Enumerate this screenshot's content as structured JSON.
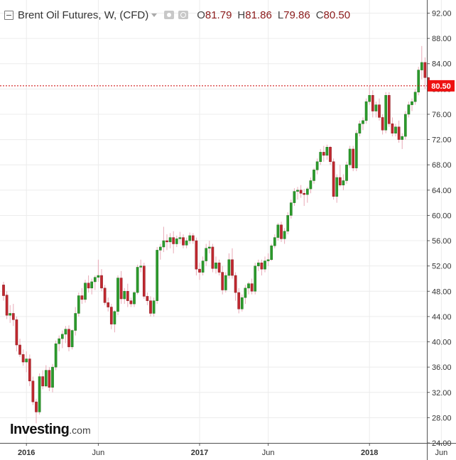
{
  "header": {
    "title": "Brent Oil Futures, W, (CFD)",
    "open_label": "O",
    "open": "81.79",
    "high_label": "H",
    "high": "81.86",
    "low_label": "L",
    "low": "79.86",
    "close_label": "C",
    "close": "80.50"
  },
  "watermark": {
    "brand": "Investing",
    "suffix": ".com"
  },
  "colors": {
    "up": "#2c9a2c",
    "down": "#c0282f",
    "wick": "#e8a9b6",
    "grid": "#ececec",
    "axis": "#555555",
    "price_line": "#cc0000",
    "price_tag": "#ee1111"
  },
  "chart_data": {
    "type": "candlestick",
    "title": "Brent Oil Futures, W, (CFD)",
    "xlabel": "",
    "ylabel": "",
    "ylim": [
      24,
      92
    ],
    "y_ticks": [
      "24.00",
      "28.00",
      "32.00",
      "36.00",
      "40.00",
      "44.00",
      "48.00",
      "52.00",
      "56.00",
      "60.00",
      "64.00",
      "68.00",
      "72.00",
      "76.00",
      "80.00",
      "84.00",
      "88.00",
      "92.00"
    ],
    "x_ticks": [
      {
        "label": "2016",
        "week": 7
      },
      {
        "label": "Jun",
        "week": 29
      },
      {
        "label": "2017",
        "week": 60
      },
      {
        "label": "Jun",
        "week": 81
      },
      {
        "label": "2018",
        "week": 112
      },
      {
        "label": "Jun",
        "week": 134
      }
    ],
    "grid": true,
    "last_price": 80.5,
    "last_price_label": "80.50",
    "candles": [
      [
        49.0,
        49.5,
        46.5,
        47.3
      ],
      [
        47.4,
        48.0,
        43.6,
        44.2
      ],
      [
        44.2,
        45.8,
        43.0,
        44.5
      ],
      [
        44.5,
        46.0,
        42.5,
        43.5
      ],
      [
        43.5,
        44.0,
        38.5,
        39.5
      ],
      [
        39.5,
        40.5,
        37.6,
        38.0
      ],
      [
        38.0,
        38.8,
        36.2,
        36.8
      ],
      [
        36.8,
        38.5,
        35.2,
        37.3
      ],
      [
        37.3,
        38.0,
        33.0,
        33.8
      ],
      [
        33.8,
        34.5,
        30.0,
        30.5
      ],
      [
        30.5,
        31.0,
        27.1,
        28.9
      ],
      [
        28.9,
        35.0,
        28.5,
        34.5
      ],
      [
        34.5,
        35.5,
        32.5,
        33.0
      ],
      [
        33.0,
        36.3,
        32.8,
        35.5
      ],
      [
        35.5,
        36.0,
        32.2,
        32.8
      ],
      [
        32.8,
        36.5,
        32.0,
        36.0
      ],
      [
        36.0,
        40.2,
        35.5,
        39.7
      ],
      [
        39.7,
        41.0,
        38.5,
        40.5
      ],
      [
        40.5,
        41.8,
        39.0,
        41.2
      ],
      [
        41.2,
        42.5,
        39.8,
        42.0
      ],
      [
        42.0,
        42.6,
        38.5,
        39.2
      ],
      [
        39.2,
        42.0,
        38.8,
        41.8
      ],
      [
        41.8,
        45.5,
        41.0,
        44.5
      ],
      [
        44.5,
        47.8,
        44.0,
        47.3
      ],
      [
        47.3,
        48.5,
        46.0,
        46.7
      ],
      [
        46.7,
        49.8,
        46.2,
        49.3
      ],
      [
        49.3,
        50.5,
        47.8,
        48.5
      ],
      [
        48.5,
        50.0,
        47.5,
        49.5
      ],
      [
        49.5,
        50.5,
        48.2,
        50.2
      ],
      [
        50.2,
        53.0,
        49.5,
        50.5
      ],
      [
        50.5,
        51.5,
        48.0,
        48.5
      ],
      [
        48.5,
        49.0,
        45.8,
        46.2
      ],
      [
        46.2,
        47.0,
        44.8,
        45.5
      ],
      [
        45.5,
        46.0,
        42.0,
        42.8
      ],
      [
        42.8,
        45.0,
        41.5,
        44.8
      ],
      [
        44.8,
        50.5,
        44.2,
        50.1
      ],
      [
        50.1,
        51.2,
        46.0,
        46.8
      ],
      [
        46.8,
        48.5,
        46.0,
        48.0
      ],
      [
        48.0,
        49.2,
        45.5,
        46.5
      ],
      [
        46.5,
        47.0,
        45.5,
        46.0
      ],
      [
        46.0,
        48.0,
        45.5,
        47.8
      ],
      [
        47.8,
        52.2,
        47.5,
        51.8
      ],
      [
        51.8,
        53.0,
        51.0,
        52.0
      ],
      [
        52.0,
        52.5,
        46.8,
        47.2
      ],
      [
        47.2,
        47.8,
        45.8,
        46.5
      ],
      [
        46.5,
        47.2,
        44.0,
        44.5
      ],
      [
        44.5,
        47.0,
        44.0,
        46.5
      ],
      [
        46.5,
        55.0,
        46.0,
        54.5
      ],
      [
        54.5,
        55.5,
        53.0,
        55.0
      ],
      [
        55.0,
        58.2,
        54.2,
        56.0
      ],
      [
        56.0,
        57.0,
        54.5,
        55.8
      ],
      [
        55.8,
        57.2,
        54.8,
        56.5
      ],
      [
        56.5,
        57.5,
        54.0,
        55.5
      ],
      [
        55.5,
        56.8,
        55.0,
        56.3
      ],
      [
        56.3,
        57.4,
        55.5,
        56.5
      ],
      [
        56.5,
        57.0,
        54.8,
        55.3
      ],
      [
        55.3,
        56.5,
        54.8,
        56.0
      ],
      [
        56.0,
        57.3,
        55.5,
        56.8
      ],
      [
        56.8,
        57.2,
        55.5,
        56.0
      ],
      [
        56.0,
        56.5,
        50.5,
        51.5
      ],
      [
        51.5,
        52.5,
        49.8,
        51.0
      ],
      [
        51.0,
        53.5,
        50.5,
        52.8
      ],
      [
        52.8,
        55.5,
        52.0,
        54.8
      ],
      [
        54.8,
        56.0,
        54.0,
        55.0
      ],
      [
        55.0,
        55.5,
        51.0,
        51.6
      ],
      [
        51.6,
        53.5,
        50.8,
        52.5
      ],
      [
        52.5,
        53.0,
        50.5,
        51.0
      ],
      [
        51.0,
        52.0,
        47.5,
        48.2
      ],
      [
        48.2,
        51.0,
        47.8,
        50.5
      ],
      [
        50.5,
        54.0,
        50.0,
        53.0
      ],
      [
        53.0,
        54.8,
        50.0,
        50.5
      ],
      [
        50.5,
        51.0,
        46.5,
        47.8
      ],
      [
        47.8,
        48.5,
        44.5,
        45.2
      ],
      [
        45.2,
        47.5,
        44.8,
        47.0
      ],
      [
        47.0,
        49.0,
        46.0,
        48.5
      ],
      [
        48.5,
        49.5,
        47.5,
        49.2
      ],
      [
        49.2,
        50.0,
        47.5,
        48.0
      ],
      [
        48.0,
        52.5,
        47.5,
        52.0
      ],
      [
        52.0,
        53.0,
        51.2,
        52.5
      ],
      [
        52.5,
        53.0,
        50.5,
        51.5
      ],
      [
        51.5,
        53.5,
        51.0,
        52.8
      ],
      [
        52.8,
        54.0,
        52.0,
        53.0
      ],
      [
        53.0,
        55.5,
        52.8,
        55.2
      ],
      [
        55.2,
        57.0,
        54.8,
        56.5
      ],
      [
        56.5,
        58.8,
        56.0,
        58.5
      ],
      [
        58.5,
        59.0,
        55.8,
        56.3
      ],
      [
        56.3,
        58.0,
        55.5,
        57.5
      ],
      [
        57.5,
        60.5,
        57.0,
        60.0
      ],
      [
        60.0,
        62.5,
        59.5,
        62.0
      ],
      [
        62.0,
        64.3,
        61.5,
        63.8
      ],
      [
        63.8,
        64.5,
        62.5,
        64.0
      ],
      [
        64.0,
        64.8,
        62.8,
        63.5
      ],
      [
        63.5,
        64.2,
        61.5,
        63.3
      ],
      [
        63.3,
        64.5,
        62.0,
        64.2
      ],
      [
        64.2,
        66.0,
        63.5,
        65.5
      ],
      [
        65.5,
        67.5,
        65.0,
        67.2
      ],
      [
        67.2,
        69.0,
        66.5,
        68.5
      ],
      [
        68.5,
        70.5,
        68.0,
        70.0
      ],
      [
        70.0,
        71.0,
        68.5,
        69.5
      ],
      [
        69.5,
        71.2,
        68.8,
        70.8
      ],
      [
        70.8,
        71.0,
        68.0,
        68.5
      ],
      [
        68.5,
        69.0,
        62.5,
        63.0
      ],
      [
        63.0,
        66.5,
        62.0,
        66.0
      ],
      [
        66.0,
        68.0,
        64.5,
        64.8
      ],
      [
        64.8,
        66.5,
        64.0,
        65.5
      ],
      [
        65.5,
        68.5,
        65.0,
        68.0
      ],
      [
        68.0,
        71.0,
        67.5,
        70.5
      ],
      [
        70.5,
        71.0,
        67.0,
        67.5
      ],
      [
        67.5,
        73.5,
        67.0,
        73.0
      ],
      [
        73.0,
        75.0,
        72.5,
        74.5
      ],
      [
        74.5,
        75.5,
        73.5,
        75.0
      ],
      [
        75.0,
        78.5,
        74.5,
        78.0
      ],
      [
        78.0,
        80.5,
        77.5,
        79.0
      ],
      [
        79.0,
        79.8,
        75.5,
        76.5
      ],
      [
        76.5,
        78.0,
        75.5,
        77.5
      ],
      [
        77.5,
        78.5,
        75.0,
        75.5
      ],
      [
        75.5,
        76.0,
        72.8,
        73.5
      ],
      [
        73.5,
        79.5,
        73.0,
        79.0
      ],
      [
        79.0,
        79.5,
        74.0,
        74.5
      ],
      [
        74.5,
        75.5,
        72.5,
        73.0
      ],
      [
        73.0,
        74.5,
        72.5,
        74.0
      ],
      [
        74.0,
        75.0,
        71.5,
        72.0
      ],
      [
        72.0,
        73.0,
        70.5,
        72.5
      ],
      [
        72.5,
        76.5,
        72.0,
        76.0
      ],
      [
        76.0,
        78.0,
        75.5,
        77.5
      ],
      [
        77.5,
        78.5,
        76.5,
        78.0
      ],
      [
        78.0,
        80.0,
        77.5,
        79.5
      ],
      [
        79.5,
        83.5,
        79.0,
        83.0
      ],
      [
        83.0,
        86.8,
        81.5,
        84.2
      ],
      [
        84.2,
        85.0,
        80.0,
        81.8
      ],
      [
        81.8,
        81.9,
        79.9,
        80.5
      ]
    ]
  }
}
